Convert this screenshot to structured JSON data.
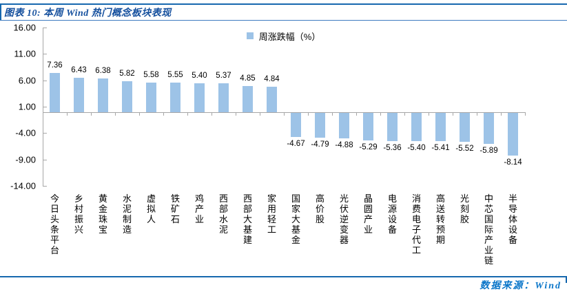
{
  "header": {
    "title": "图表 10: 本周 Wind 热门概念板块表现"
  },
  "legend": {
    "label": "周涨跌幅（%）"
  },
  "footer": {
    "source_label": "数据来源：Wind"
  },
  "colors": {
    "bar": "#9DC3E7",
    "rule_blue": "#1567AE",
    "rule_blue_light": "#3C7BBF",
    "title_blue": "#15509E",
    "source_blue": "#0B76C9",
    "axis_gray": "#A6A6A6",
    "text_black": "#000000"
  },
  "chart_data": {
    "type": "bar",
    "title": "本周Wind热门概念板块表现",
    "legend": [
      "周涨跌幅（%）"
    ],
    "legend_position": "top-center",
    "categories": [
      "今日头条平台",
      "乡村振兴",
      "黄金珠宝",
      "水泥制造",
      "虚拟人",
      "铁矿石",
      "鸡产业",
      "西部水泥",
      "西部大基建",
      "家用轻工",
      "国家大基金",
      "高价股",
      "光伏逆变器",
      "晶圆产业",
      "电源设备",
      "消费电子代工",
      "高送转预期",
      "光刻胶",
      "中芯国际产业链",
      "半导体设备"
    ],
    "values": [
      7.36,
      6.43,
      6.38,
      5.82,
      5.58,
      5.55,
      5.4,
      5.37,
      4.85,
      4.84,
      -4.67,
      -4.79,
      -4.88,
      -5.29,
      -5.36,
      -5.4,
      -5.41,
      -5.52,
      -5.89,
      -8.14
    ],
    "ylabel": "",
    "xlabel": "",
    "ylim": [
      -14,
      16
    ],
    "yticks": [
      16,
      11,
      6,
      1,
      -4,
      -9,
      -14
    ],
    "grid": false,
    "data_labels": "outside-end"
  }
}
